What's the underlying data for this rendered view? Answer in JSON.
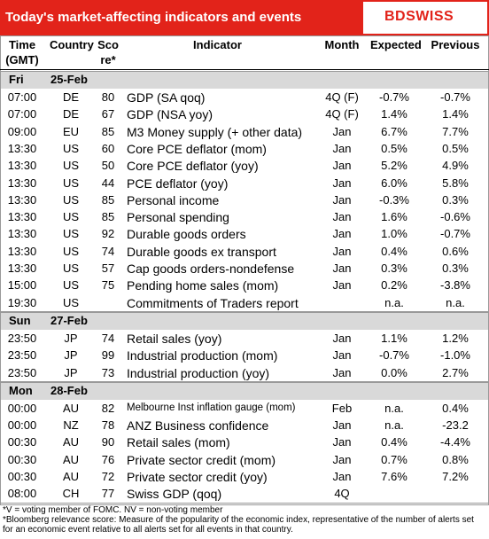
{
  "header": {
    "title": "Today's market-affecting indicators and events",
    "logo": "BDSWISS"
  },
  "columns": [
    "Time\n(GMT)",
    "Country",
    "Sco\nre*",
    "Indicator",
    "Month",
    "Expected",
    "Previous"
  ],
  "sections": [
    {
      "day": "Fri",
      "date": "25-Feb",
      "rows": [
        {
          "time": "07:00",
          "country": "DE",
          "score": "80",
          "indicator": "GDP (SA qoq)",
          "month": "4Q (F)",
          "expected": "-0.7%",
          "previous": "-0.7%"
        },
        {
          "time": "07:00",
          "country": "DE",
          "score": "67",
          "indicator": "GDP (NSA yoy)",
          "month": "4Q (F)",
          "expected": "1.4%",
          "previous": "1.4%"
        },
        {
          "time": "09:00",
          "country": "EU",
          "score": "85",
          "indicator": "M3 Money supply (+ other data)",
          "month": "Jan",
          "expected": "6.7%",
          "previous": "7.7%"
        },
        {
          "time": "13:30",
          "country": "US",
          "score": "60",
          "indicator": "Core PCE deflator (mom)",
          "month": "Jan",
          "expected": "0.5%",
          "previous": "0.5%"
        },
        {
          "time": "13:30",
          "country": "US",
          "score": "50",
          "indicator": "Core PCE deflator (yoy)",
          "month": "Jan",
          "expected": "5.2%",
          "previous": "4.9%"
        },
        {
          "time": "13:30",
          "country": "US",
          "score": "44",
          "indicator": "PCE deflator (yoy)",
          "month": "Jan",
          "expected": "6.0%",
          "previous": "5.8%"
        },
        {
          "time": "13:30",
          "country": "US",
          "score": "85",
          "indicator": "Personal income",
          "month": "Jan",
          "expected": "-0.3%",
          "previous": "0.3%"
        },
        {
          "time": "13:30",
          "country": "US",
          "score": "85",
          "indicator": "Personal spending",
          "month": "Jan",
          "expected": "1.6%",
          "previous": "-0.6%"
        },
        {
          "time": "13:30",
          "country": "US",
          "score": "92",
          "indicator": "Durable goods orders",
          "month": "Jan",
          "expected": "1.0%",
          "previous": "-0.7%"
        },
        {
          "time": "13:30",
          "country": "US",
          "score": "74",
          "indicator": "Durable goods ex transport",
          "month": "Jan",
          "expected": "0.4%",
          "previous": "0.6%"
        },
        {
          "time": "13:30",
          "country": "US",
          "score": "57",
          "indicator": "Cap goods orders-nondefense",
          "month": "Jan",
          "expected": "0.3%",
          "previous": "0.3%"
        },
        {
          "time": "15:00",
          "country": "US",
          "score": "75",
          "indicator": "Pending home sales (mom)",
          "month": "Jan",
          "expected": "0.2%",
          "previous": "-3.8%"
        },
        {
          "time": "19:30",
          "country": "US",
          "indicator": "Commitments of Traders  report",
          "expected": "n.a.",
          "previous": "n.a."
        }
      ]
    },
    {
      "day": "Sun",
      "date": "27-Feb",
      "rows": [
        {
          "time": "23:50",
          "country": "JP",
          "score": "74",
          "indicator": "Retail sales (yoy)",
          "month": "Jan",
          "expected": "1.1%",
          "previous": "1.2%"
        },
        {
          "time": "23:50",
          "country": "JP",
          "score": "99",
          "indicator": "Industrial production (mom)",
          "month": "Jan",
          "expected": "-0.7%",
          "previous": "-1.0%"
        },
        {
          "time": "23:50",
          "country": "JP",
          "score": "73",
          "indicator": "Industrial production (yoy)",
          "month": "Jan",
          "expected": "0.0%",
          "previous": "2.7%"
        }
      ]
    },
    {
      "day": "Mon",
      "date": "28-Feb",
      "rows": [
        {
          "time": "00:00",
          "country": "AU",
          "score": "82",
          "indicator": "Melbourne Inst inflation gauge (mom)",
          "month": "Feb",
          "expected": "n.a.",
          "previous": "0.4%"
        },
        {
          "time": "00:00",
          "country": "NZ",
          "score": "78",
          "indicator": "ANZ Business confidence",
          "month": "Jan",
          "expected": "n.a.",
          "previous": "-23.2"
        },
        {
          "time": "00:30",
          "country": "AU",
          "score": "90",
          "indicator": "Retail sales (mom)",
          "month": "Jan",
          "expected": "0.4%",
          "previous": "-4.4%"
        },
        {
          "time": "00:30",
          "country": "AU",
          "score": "76",
          "indicator": "Private sector credit (mom)",
          "month": "Jan",
          "expected": "0.7%",
          "previous": "0.8%"
        },
        {
          "time": "00:30",
          "country": "AU",
          "score": "72",
          "indicator": "Private sector credit (yoy)",
          "month": "Jan",
          "expected": "7.6%",
          "previous": "7.2%"
        },
        {
          "time": "08:00",
          "country": "CH",
          "score": "77",
          "indicator": "Swiss GDP (qoq)",
          "month": "4Q"
        }
      ]
    }
  ],
  "footnotes": [
    "*V = voting member of FOMC. NV = non-voting member",
    "*Bloomberg relevance score:  Measure of the popularity of the economic index, representative of the number of alerts set for an economic event relative to all alerts set for all events in that country."
  ]
}
